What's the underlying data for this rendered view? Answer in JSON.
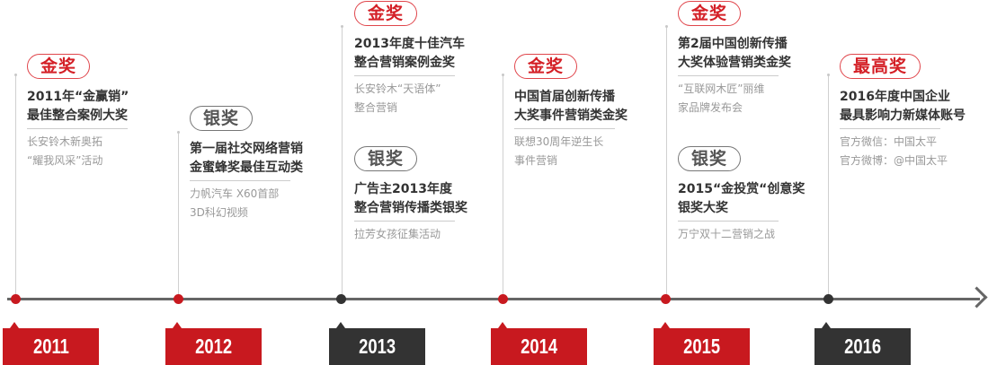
{
  "colors": {
    "gold_badge": "#d42027",
    "silver_badge": "#555555",
    "year_red": "#c8191f",
    "year_dark": "#333333",
    "axis": "#666666"
  },
  "years": [
    {
      "label": "2011",
      "style": "red"
    },
    {
      "label": "2012",
      "style": "red"
    },
    {
      "label": "2013",
      "style": "dark"
    },
    {
      "label": "2014",
      "style": "red"
    },
    {
      "label": "2015",
      "style": "red"
    },
    {
      "label": "2016",
      "style": "dark"
    }
  ],
  "awards": [
    {
      "badge": "金奖",
      "type": "gold",
      "title": [
        "2011年“金赢销”",
        "最佳整合案例大奖"
      ],
      "desc": [
        "长安铃木新奥拓",
        "“耀我风采”活动"
      ]
    },
    {
      "badge": "银奖",
      "type": "silver",
      "title": [
        "第一届社交网络营销",
        "金蜜蜂奖最佳互动类"
      ],
      "desc": [
        "力帆汽车  X60首部",
        "3D科幻视频"
      ]
    },
    {
      "badge": "金奖",
      "type": "gold",
      "title": [
        "2013年度十佳汽车",
        "整合营销案例金奖"
      ],
      "desc": [
        "长安铃木“天语体”",
        "整合营销"
      ]
    },
    {
      "badge": "银奖",
      "type": "silver",
      "title": [
        "广告主2013年度",
        "整合营销传播类银奖"
      ],
      "desc": [
        "拉芳女孩征集活动"
      ]
    },
    {
      "badge": "金奖",
      "type": "gold",
      "title": [
        "中国首届创新传播",
        "大奖事件营销类金奖"
      ],
      "desc": [
        "联想30周年逆生长",
        "事件营销"
      ]
    },
    {
      "badge": "金奖",
      "type": "gold",
      "title": [
        "第2届中国创新传播",
        "大奖体验营销类金奖"
      ],
      "desc": [
        "“互联网木匠”丽维",
        "家品牌发布会"
      ]
    },
    {
      "badge": "银奖",
      "type": "silver",
      "title": [
        "2015“金投赏“创意奖",
        "银奖大奖"
      ],
      "desc": [
        "万宁双十二营销之战"
      ]
    },
    {
      "badge": "最高奖",
      "type": "gold",
      "title": [
        "2016年度中国企业",
        "最具影响力新媒体账号"
      ],
      "desc": [
        "官方微信：中国太平",
        "官方微博：@中国太平"
      ]
    }
  ]
}
